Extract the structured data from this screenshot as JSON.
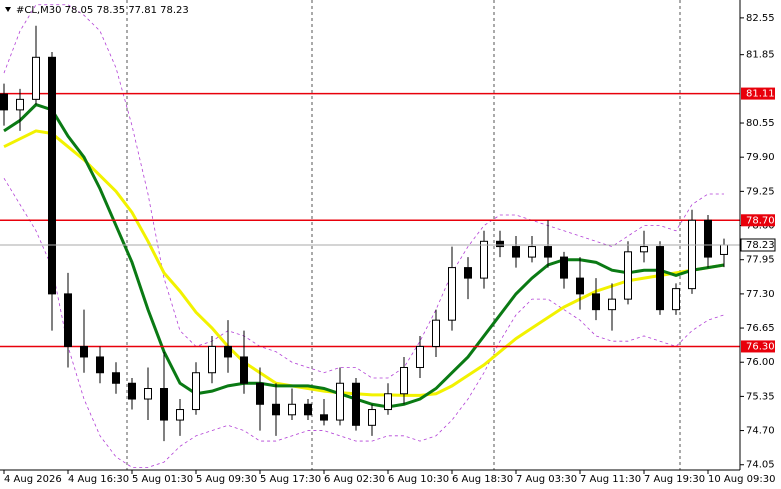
{
  "chart_data": {
    "type": "candlestick",
    "title": "#CL,M30",
    "categories": [
      "4 Aug 2026",
      null,
      null,
      null,
      "4 Aug 16:30",
      null,
      null,
      null,
      "5 Aug 01:30",
      null,
      null,
      null,
      "5 Aug 09:30",
      null,
      null,
      null,
      "5 Aug 17:30",
      null,
      null,
      null,
      "6 Aug 02:30",
      null,
      null,
      null,
      "6 Aug 10:30",
      null,
      null,
      null,
      "6 Aug 18:30",
      null,
      null,
      null,
      "7 Aug 03:30",
      null,
      null,
      null,
      "7 Aug 11:30",
      null,
      null,
      null,
      "7 Aug 19:30",
      null,
      null,
      null,
      "10 Aug 09:30",
      null
    ],
    "open": [
      81.1,
      80.8,
      81.0,
      81.8,
      77.3,
      76.3,
      76.1,
      75.8,
      75.6,
      75.3,
      75.5,
      74.9,
      75.1,
      75.8,
      76.3,
      76.1,
      75.6,
      75.2,
      75.0,
      75.2,
      75.0,
      74.9,
      75.6,
      74.8,
      75.1,
      75.4,
      75.9,
      76.3,
      76.8,
      77.8,
      77.6,
      78.3,
      78.2,
      78.0,
      78.2,
      78.0,
      77.6,
      77.3,
      77.0,
      77.2,
      78.1,
      78.2,
      77.0,
      77.4,
      78.7,
      78.05
    ],
    "high": [
      81.3,
      81.2,
      82.4,
      81.9,
      77.7,
      77.0,
      76.3,
      76.0,
      75.7,
      75.9,
      76.2,
      75.3,
      76.0,
      76.5,
      76.8,
      76.6,
      75.9,
      75.6,
      75.5,
      75.3,
      75.3,
      75.9,
      75.7,
      75.2,
      75.6,
      76.1,
      76.5,
      77.0,
      78.2,
      78.0,
      78.5,
      78.5,
      78.4,
      78.4,
      78.7,
      78.1,
      78.0,
      77.6,
      77.5,
      78.3,
      78.5,
      78.3,
      77.5,
      78.9,
      78.8,
      78.35
    ],
    "low": [
      80.5,
      80.4,
      80.9,
      76.6,
      75.9,
      75.8,
      75.6,
      75.4,
      75.1,
      74.9,
      74.5,
      74.6,
      75.0,
      75.6,
      75.8,
      75.4,
      74.7,
      74.6,
      74.9,
      74.9,
      74.8,
      74.8,
      74.7,
      74.6,
      75.0,
      75.2,
      75.7,
      76.1,
      76.6,
      77.2,
      77.4,
      78.0,
      77.8,
      77.9,
      77.8,
      77.4,
      77.0,
      76.8,
      76.6,
      77.1,
      77.9,
      76.9,
      76.9,
      77.3,
      77.8,
      77.81
    ],
    "close": [
      80.8,
      81.0,
      81.8,
      77.3,
      76.3,
      76.1,
      75.8,
      75.6,
      75.3,
      75.5,
      74.9,
      75.1,
      75.8,
      76.3,
      76.1,
      75.6,
      75.2,
      75.0,
      75.2,
      75.0,
      74.9,
      75.6,
      74.8,
      75.1,
      75.4,
      75.9,
      76.3,
      76.8,
      77.8,
      77.6,
      78.3,
      78.2,
      78.0,
      78.2,
      78.0,
      77.6,
      77.3,
      77.0,
      77.2,
      78.1,
      78.2,
      77.0,
      77.4,
      78.7,
      78.0,
      78.23
    ],
    "up_color": "#ffffff",
    "down_color": "#000000",
    "overlays": [
      {
        "color": "#b23fd6",
        "dash": true,
        "width": 0.8,
        "values": [
          81.5,
          82.3,
          82.8,
          82.8,
          82.8,
          82.6,
          82.3,
          81.6,
          80.5,
          79.2,
          77.6,
          76.6,
          76.3,
          76.4,
          76.6,
          76.5,
          76.3,
          76.2,
          76.0,
          75.9,
          75.8,
          75.9,
          75.9,
          75.7,
          75.7,
          75.9,
          76.4,
          77.0,
          77.7,
          78.2,
          78.6,
          78.8,
          78.8,
          78.7,
          78.6,
          78.5,
          78.4,
          78.3,
          78.2,
          78.4,
          78.6,
          78.6,
          78.5,
          79.0,
          79.2,
          79.2
        ]
      },
      {
        "color": "#b23fd6",
        "dash": true,
        "width": 0.8,
        "values": [
          79.5,
          79.0,
          78.5,
          77.8,
          76.3,
          75.3,
          74.6,
          74.2,
          74.0,
          74.0,
          74.1,
          74.4,
          74.6,
          74.7,
          74.8,
          74.7,
          74.5,
          74.5,
          74.6,
          74.7,
          74.7,
          74.6,
          74.5,
          74.5,
          74.6,
          74.6,
          74.5,
          74.6,
          74.9,
          75.3,
          75.8,
          76.4,
          76.9,
          77.2,
          77.2,
          77.0,
          76.8,
          76.5,
          76.4,
          76.4,
          76.5,
          76.4,
          76.3,
          76.6,
          76.8,
          76.9
        ]
      },
      {
        "color": "#f2f200",
        "dash": false,
        "width": 3,
        "values": [
          80.1,
          80.25,
          80.4,
          80.35,
          80.1,
          79.85,
          79.55,
          79.25,
          78.85,
          78.3,
          77.7,
          77.35,
          76.95,
          76.65,
          76.3,
          76.0,
          75.8,
          75.6,
          75.55,
          75.5,
          75.45,
          75.42,
          75.4,
          75.38,
          75.38,
          75.37,
          75.37,
          75.4,
          75.55,
          75.75,
          75.95,
          76.2,
          76.45,
          76.65,
          76.85,
          77.05,
          77.2,
          77.35,
          77.45,
          77.55,
          77.6,
          77.65,
          77.7,
          77.75,
          77.8,
          77.85
        ]
      },
      {
        "color": "#0a7a14",
        "dash": false,
        "width": 3,
        "values": [
          80.4,
          80.6,
          80.9,
          80.8,
          80.3,
          79.9,
          79.3,
          78.6,
          77.9,
          77.0,
          76.2,
          75.6,
          75.4,
          75.45,
          75.55,
          75.6,
          75.6,
          75.55,
          75.55,
          75.55,
          75.5,
          75.4,
          75.3,
          75.2,
          75.15,
          75.2,
          75.3,
          75.5,
          75.8,
          76.1,
          76.5,
          76.9,
          77.3,
          77.6,
          77.85,
          77.95,
          77.95,
          77.9,
          77.75,
          77.7,
          77.75,
          77.75,
          77.65,
          77.75,
          77.8,
          77.85
        ]
      }
    ],
    "levels": [
      81.11,
      {
        "value": 78.7,
        "label": "78.70"
      },
      {
        "value": 76.3,
        "label": "76.30"
      }
    ],
    "level_color": "#e8000b",
    "ylim": [
      73.95,
      82.89
    ],
    "yticks": [
      82.55,
      81.85,
      80.55,
      {
        "value": 79.9,
        "label": "79.90"
      },
      79.25,
      {
        "value": 78.6,
        "label": "78.60"
      },
      77.95,
      {
        "value": 77.3,
        "label": "77.30"
      },
      76.65,
      {
        "value": 76,
        "label": "76.00"
      },
      75.35,
      {
        "value": 74.7,
        "label": "74.70"
      },
      74.05
    ]
  }
}
